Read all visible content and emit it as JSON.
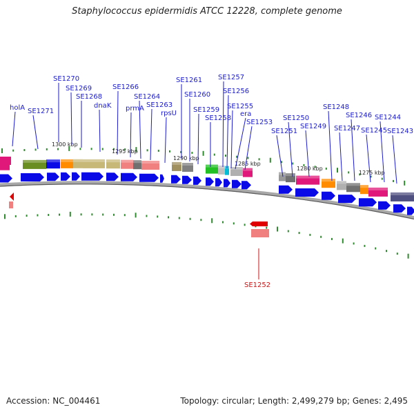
{
  "title": "Staphylococcus epidermidis ATCC 12228, complete genome",
  "footer": {
    "accession": "Accession: NC_004461",
    "summary": "Topology: circular; Length: 2,499,279 bp; Genes: 2,495"
  },
  "scale_labels": [
    "1300 kbp",
    "1295 kbp",
    "1290 kbp",
    "1285 kbp",
    "1280 kbp",
    "1275 kbp"
  ],
  "gene_labels_forward": [
    "holA",
    "SE1271",
    "SE1270",
    "SE1269",
    "SE1268",
    "dnaK",
    "SE1266",
    "prmA",
    "SE1264",
    "SE1263",
    "rpsU",
    "SE1261",
    "SE1260",
    "SE1259",
    "SE1258",
    "SE1257",
    "SE1256",
    "SE1255",
    "era",
    "SE1253",
    "SE1251",
    "SE1250",
    "SE1249",
    "SE1248",
    "SE1247",
    "SE1246",
    "SE1245",
    "SE1244",
    "SE1243"
  ],
  "gene_labels_reverse": [
    "SE1252"
  ],
  "colors": {
    "forward_gene": "#0a0ae6",
    "reverse_gene": "#e00000",
    "forward_label": "#1a1ad0",
    "reverse_label": "#d01010",
    "backbone": "#8a8a8a",
    "tick": "#2e8b2e"
  }
}
